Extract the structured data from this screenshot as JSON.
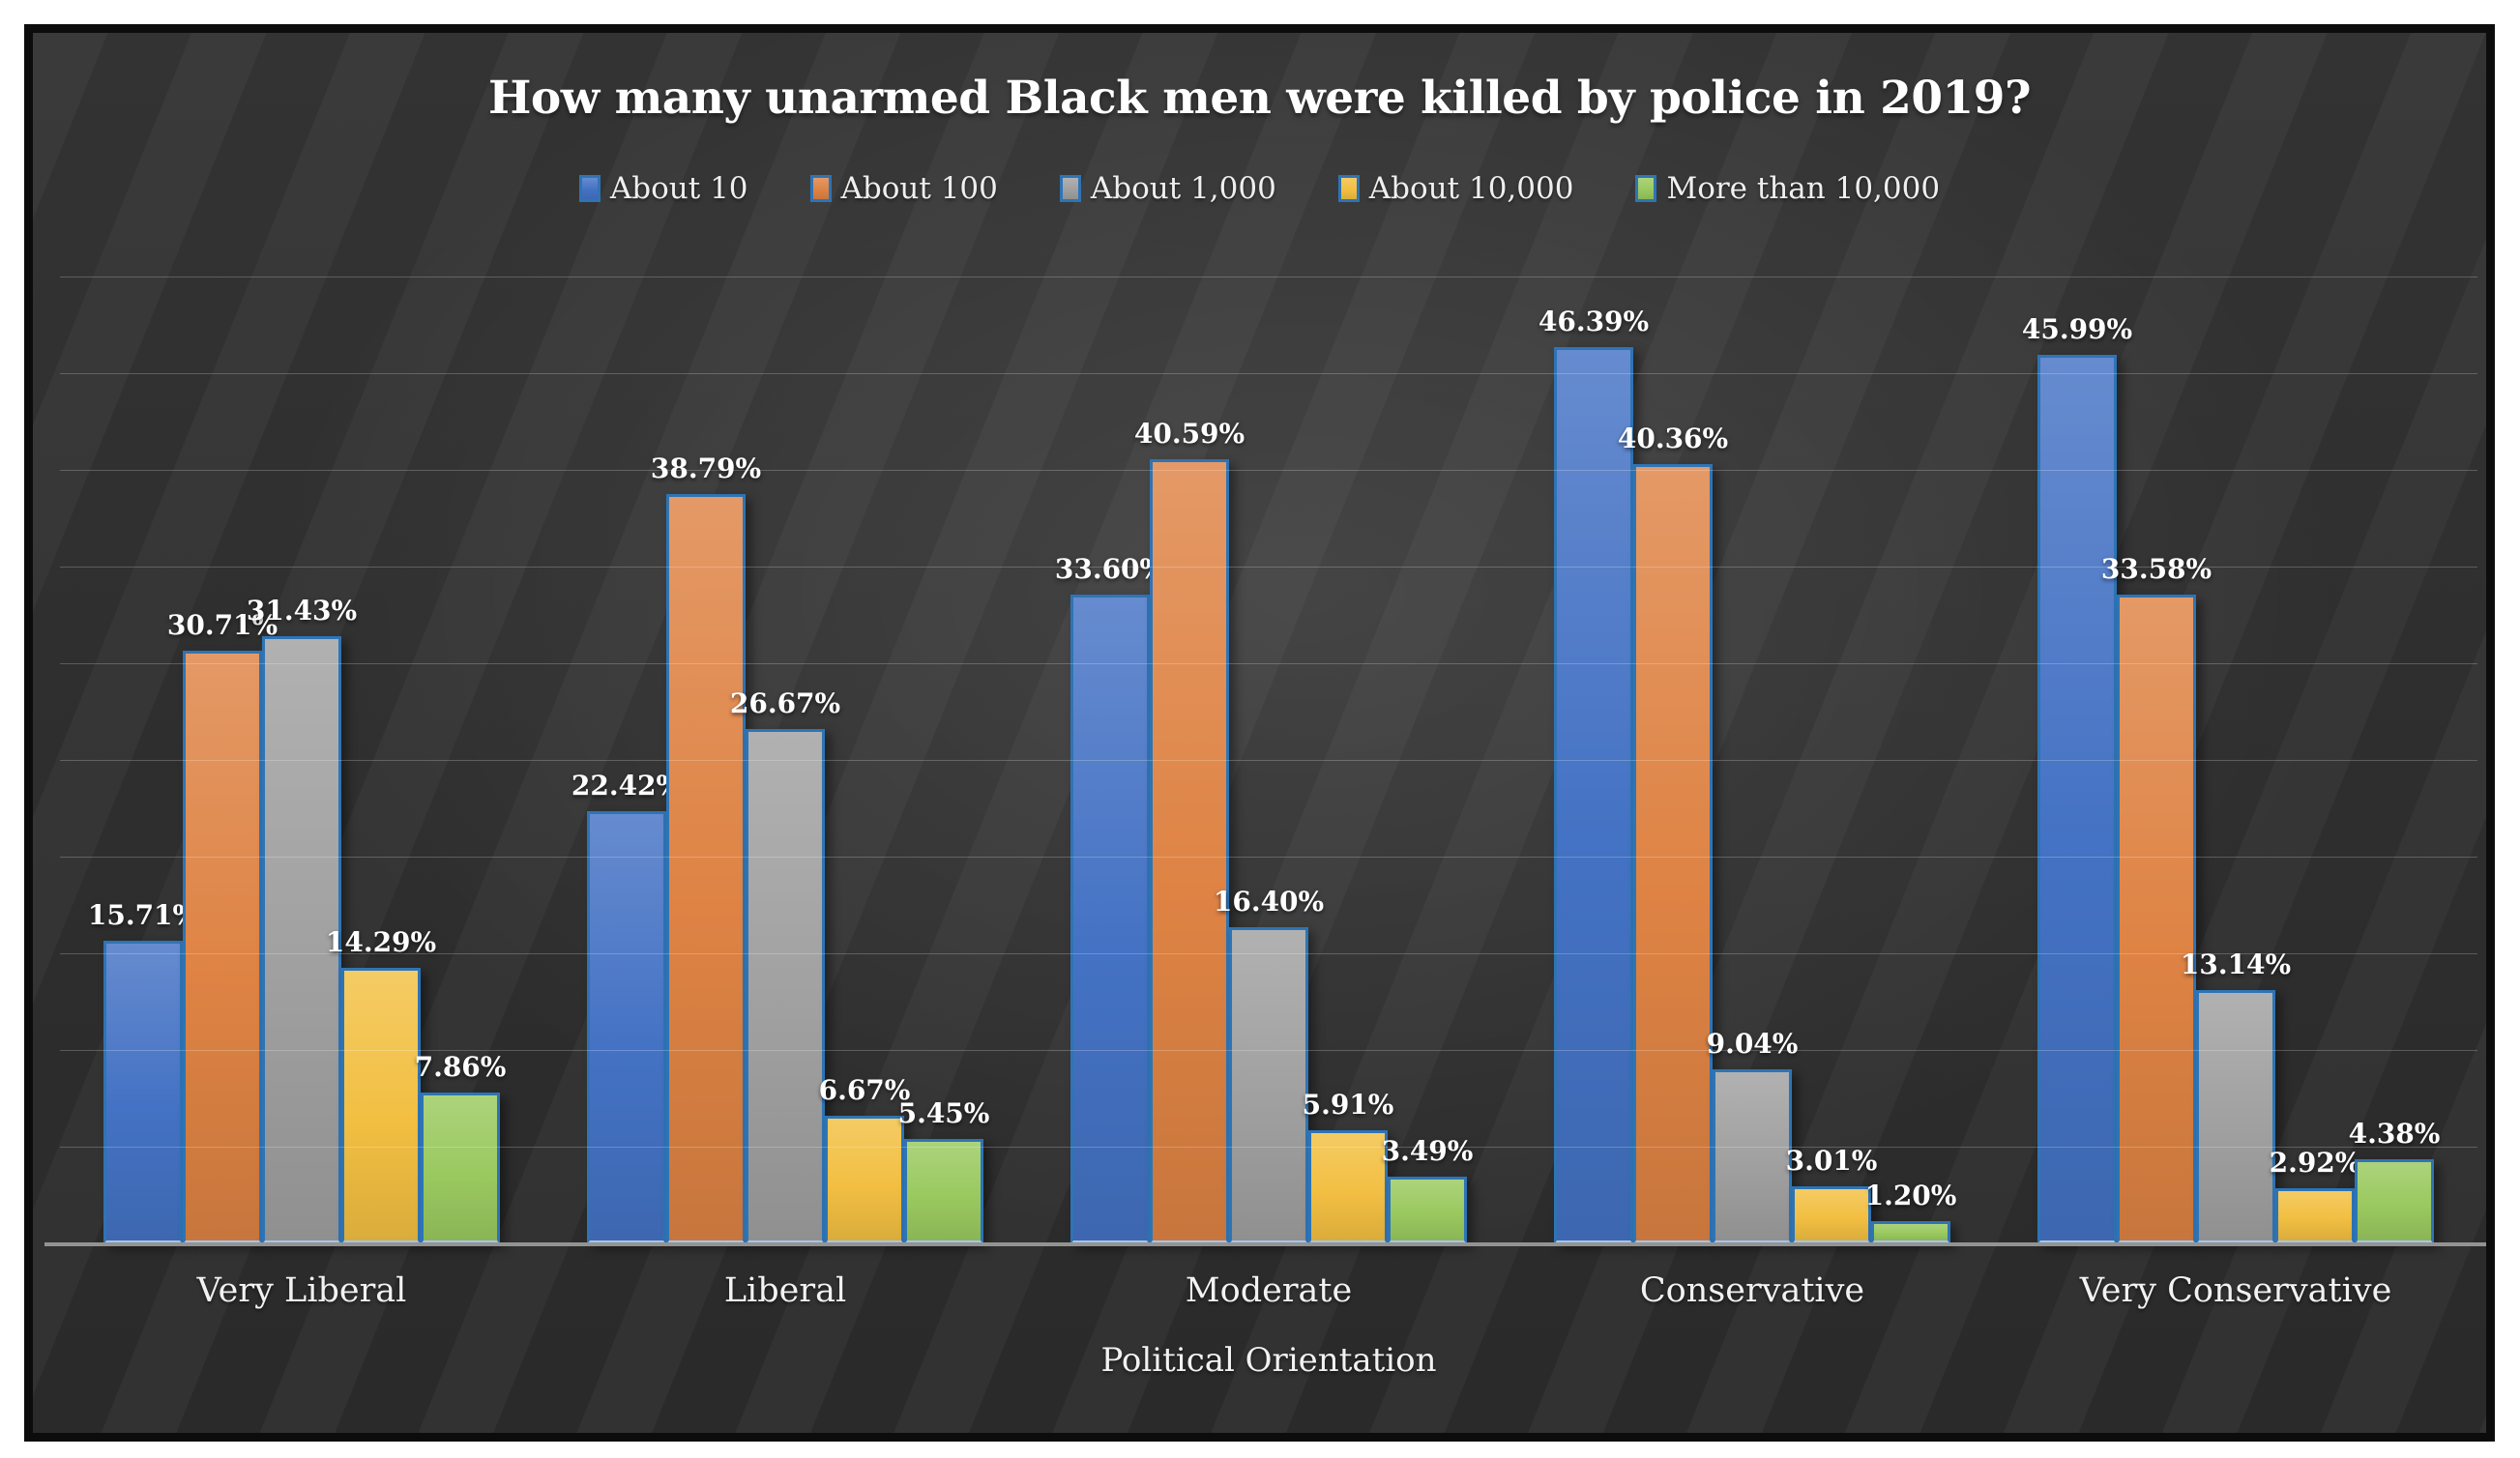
{
  "chart_data": {
    "type": "bar",
    "title": "How many unarmed Black men were killed by police in 2019?",
    "xlabel": "Political Orientation",
    "ylabel": "",
    "ylim": [
      0,
      50
    ],
    "grid_step": 5,
    "grid": true,
    "legend_position": "top",
    "value_suffix": "%",
    "bar_border_color": "#2E74B5",
    "axis_line_color": "#939393",
    "categories": [
      "Very Liberal",
      "Liberal",
      "Moderate",
      "Conservative",
      "Very Conservative"
    ],
    "series": [
      {
        "name": "About 10",
        "color": "#4472C4",
        "values": [
          15.71,
          22.42,
          33.6,
          46.39,
          45.99
        ]
      },
      {
        "name": "About 100",
        "color": "#DE8344",
        "values": [
          30.71,
          38.79,
          40.59,
          40.36,
          33.58
        ]
      },
      {
        "name": "About 1,000",
        "color": "#A0A0A0",
        "values": [
          31.43,
          26.67,
          16.4,
          9.04,
          13.14
        ]
      },
      {
        "name": "About 10,000",
        "color": "#F2BF42",
        "values": [
          14.29,
          6.67,
          5.91,
          3.01,
          2.92
        ]
      },
      {
        "name": "More than 10,000",
        "color": "#9AC95F",
        "values": [
          7.86,
          5.45,
          3.49,
          1.2,
          4.38
        ]
      }
    ]
  }
}
